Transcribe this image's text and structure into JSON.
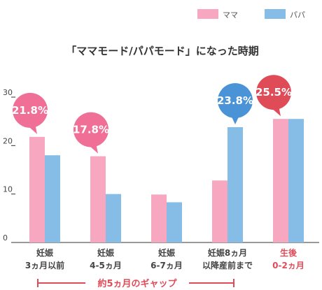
{
  "chart_data": {
    "type": "bar",
    "title": "「ママモード/パパモード」になった時期",
    "categories": [
      [
        "妊娠",
        "3ヵ月以前"
      ],
      [
        "妊娠",
        "4-5ヵ月"
      ],
      [
        "妊娠",
        "6-7ヵ月"
      ],
      [
        "妊娠8ヵ月",
        "以降産前まで"
      ],
      [
        "生後",
        "0-2ヵ月"
      ]
    ],
    "series": [
      {
        "name": "ママ",
        "color": "#f7a8c0",
        "values": [
          21.8,
          17.8,
          9.9,
          12.8,
          25.5
        ]
      },
      {
        "name": "パパ",
        "color": "#86bde6",
        "values": [
          18.0,
          10.0,
          8.3,
          23.8,
          25.5
        ]
      }
    ],
    "ylim": [
      0,
      30
    ],
    "yticks": [
      0,
      10,
      20,
      30
    ],
    "highlight_category_index": 4,
    "highlight_color": "#e04b58",
    "callouts": [
      {
        "label": "21.8%",
        "category_index": 0,
        "series_index": 0,
        "color": "#ef6f96"
      },
      {
        "label": "17.8%",
        "category_index": 1,
        "series_index": 0,
        "color": "#ef6f96"
      },
      {
        "label": "23.8%",
        "category_index": 3,
        "series_index": 1,
        "color": "#4a93d6"
      },
      {
        "label": "25.5%",
        "category_index": 4,
        "series_index": 0,
        "color": "#e04b58"
      }
    ],
    "gap_annotation": {
      "label": "約5ヵ月のギャップ",
      "color": "#e04b58"
    },
    "legend_position": "top-right",
    "grid": false
  }
}
